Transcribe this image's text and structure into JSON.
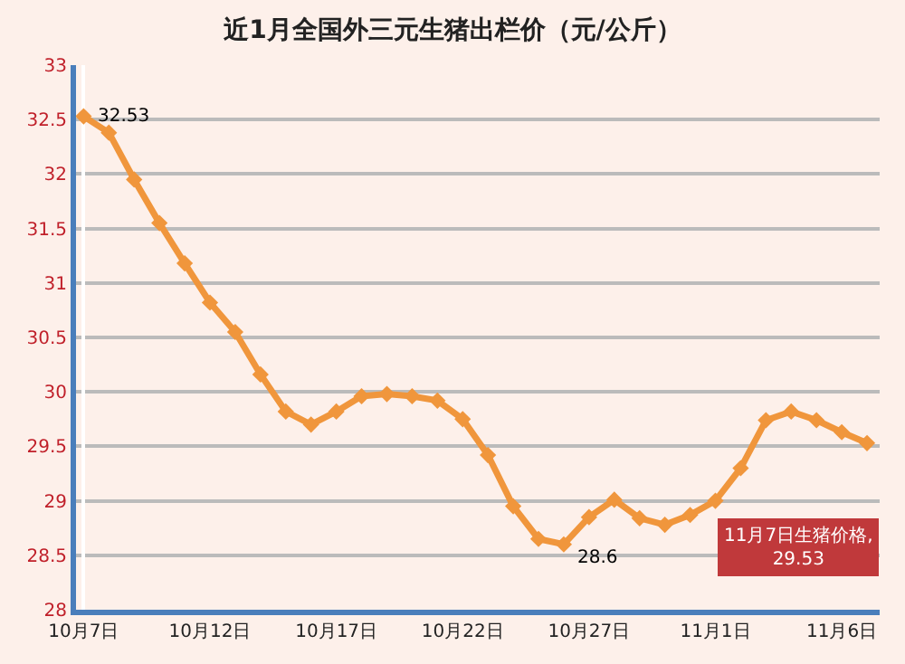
{
  "chart_data": {
    "type": "line",
    "title": "近1月全国外三元生猪出栏价（元/公斤）",
    "categories": [
      "10月7日",
      null,
      null,
      null,
      null,
      "10月12日",
      null,
      null,
      null,
      null,
      "10月17日",
      null,
      null,
      null,
      null,
      "10月22日",
      null,
      null,
      null,
      null,
      "10月27日",
      null,
      null,
      null,
      null,
      "11月1日",
      null,
      null,
      null,
      null,
      "11月6日",
      null
    ],
    "series": [
      {
        "color": "#f0963c",
        "values": [
          32.53,
          32.38,
          31.95,
          31.55,
          31.18,
          30.82,
          30.55,
          30.16,
          29.82,
          29.7,
          29.82,
          29.96,
          29.98,
          29.96,
          29.92,
          29.75,
          29.42,
          28.95,
          28.65,
          28.6,
          28.85,
          29.01,
          28.84,
          28.78,
          28.87,
          29.0,
          29.3,
          29.74,
          29.82,
          29.74,
          29.63,
          29.53
        ],
        "value_labels": [
          "32.53",
          null,
          null,
          null,
          null,
          null,
          null,
          null,
          null,
          null,
          null,
          null,
          null,
          null,
          null,
          null,
          null,
          null,
          null,
          "28.6",
          null,
          null,
          null,
          null,
          null,
          null,
          null,
          null,
          null,
          null,
          null,
          null
        ]
      }
    ],
    "annotations": [
      "11月7日生猪价格,\n29.53"
    ],
    "ylim": [
      28,
      33
    ],
    "yticks": [
      28,
      28.5,
      29,
      29.5,
      30,
      30.5,
      31,
      31.5,
      32,
      32.5,
      33
    ],
    "grid": "y",
    "marker": "diamond",
    "line_style": "solid"
  }
}
